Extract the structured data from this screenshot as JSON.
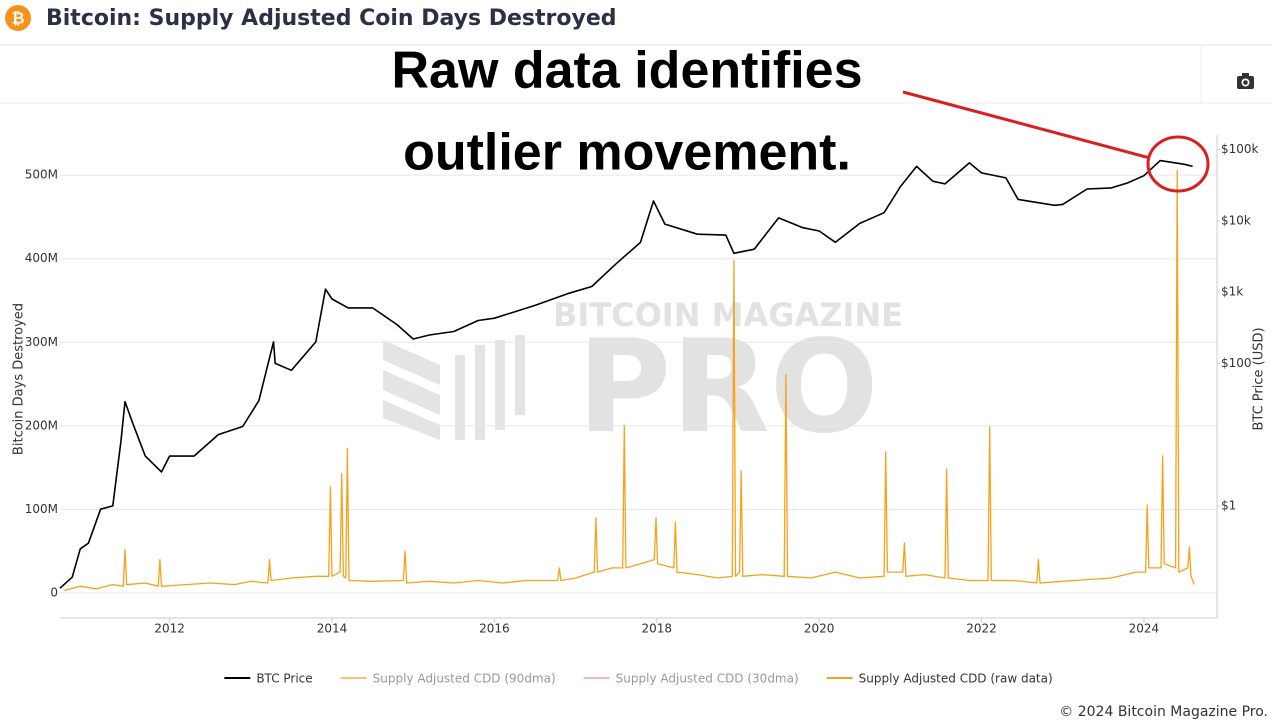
{
  "header": {
    "title": "Bitcoin: Supply Adjusted Coin Days Destroyed"
  },
  "annotation": [
    "Raw data identifies",
    "outlier movement."
  ],
  "watermark": [
    "BITCOIN MAGAZINE",
    "PRO"
  ],
  "footer": "© 2024 Bitcoin Magazine Pro.",
  "chart_data": {
    "type": "line",
    "ylabel": "Bitcoin Days Destroyed",
    "y2label": "BTC Price (USD)",
    "xlim": [
      2010.65,
      2024.9
    ],
    "xticks": [
      2012,
      2014,
      2016,
      2018,
      2020,
      2022,
      2024
    ],
    "ylim": [
      0,
      548000000
    ],
    "yticks": [
      0,
      {
        "value": 100000000,
        "label": "100M"
      },
      {
        "value": 200000000,
        "label": "200M"
      },
      {
        "value": 300000000,
        "label": "300M"
      },
      {
        "value": 400000000,
        "label": "400M"
      },
      {
        "value": 500000000,
        "label": "500M"
      }
    ],
    "y2lim": [
      0.06,
      160000
    ],
    "y2scale": "log",
    "y2ticks": [
      {
        "value": 1,
        "label": "$1"
      },
      {
        "value": 100,
        "label": "$100"
      },
      {
        "value": 1000,
        "label": "$1k"
      },
      {
        "value": 10000,
        "label": "$10k"
      },
      {
        "value": 100000,
        "label": "$100k"
      }
    ],
    "grid": true,
    "legend": "bottom",
    "series": [
      {
        "name": "BTC Price",
        "color": "#000000",
        "axis": "y2",
        "visible": true,
        "x": [
          2010.65,
          2010.8,
          2010.9,
          2011.0,
          2011.15,
          2011.3,
          2011.4,
          2011.45,
          2011.55,
          2011.7,
          2011.9,
          2012.0,
          2012.3,
          2012.6,
          2012.9,
          2013.1,
          2013.28,
          2013.3,
          2013.5,
          2013.8,
          2013.92,
          2014.0,
          2014.2,
          2014.5,
          2014.8,
          2015.0,
          2015.2,
          2015.5,
          2015.8,
          2016.0,
          2016.5,
          2016.9,
          2017.2,
          2017.5,
          2017.8,
          2017.96,
          2018.1,
          2018.5,
          2018.85,
          2018.95,
          2019.2,
          2019.5,
          2019.8,
          2020.0,
          2020.2,
          2020.5,
          2020.8,
          2021.0,
          2021.2,
          2021.4,
          2021.55,
          2021.85,
          2022.0,
          2022.3,
          2022.45,
          2022.9,
          2023.0,
          2023.3,
          2023.6,
          2023.8,
          2024.0,
          2024.2,
          2024.5,
          2024.6
        ],
        "values": [
          0.07,
          0.1,
          0.25,
          0.3,
          0.9,
          1,
          8,
          29,
          14,
          5,
          3,
          5,
          5,
          10,
          13,
          30,
          200,
          100,
          80,
          200,
          1100,
          800,
          600,
          600,
          350,
          220,
          250,
          280,
          400,
          430,
          650,
          950,
          1200,
          2500,
          5000,
          19000,
          9000,
          6500,
          6300,
          3500,
          4000,
          11000,
          8000,
          7200,
          5000,
          9200,
          13000,
          30000,
          58000,
          36000,
          33000,
          65000,
          47000,
          40000,
          20000,
          16500,
          17000,
          28000,
          29000,
          34000,
          43000,
          70000,
          62000,
          58000
        ]
      },
      {
        "name": "Supply Adjusted CDD (90dma)",
        "color": "#f9c26b",
        "axis": "y",
        "visible": false
      },
      {
        "name": "Supply Adjusted CDD (30dma)",
        "color": "#e6b3e6",
        "axis": "y",
        "visible": false
      },
      {
        "name": "Supply Adjusted CDD (raw data)",
        "color": "#f7a21b",
        "axis": "y",
        "visible": true,
        "x": [
          2010.7,
          2010.9,
          2011.1,
          2011.3,
          2011.43,
          2011.45,
          2011.47,
          2011.7,
          2011.86,
          2011.88,
          2011.9,
          2012.2,
          2012.5,
          2012.8,
          2013.0,
          2013.21,
          2013.23,
          2013.25,
          2013.5,
          2013.8,
          2013.96,
          2013.98,
          2014.0,
          2014.1,
          2014.12,
          2014.14,
          2014.17,
          2014.19,
          2014.21,
          2014.5,
          2014.88,
          2014.9,
          2014.92,
          2015.2,
          2015.5,
          2015.8,
          2016.1,
          2016.4,
          2016.78,
          2016.8,
          2016.82,
          2017.0,
          2017.23,
          2017.25,
          2017.27,
          2017.45,
          2017.58,
          2017.6,
          2017.62,
          2017.8,
          2017.97,
          2017.99,
          2018.01,
          2018.21,
          2018.23,
          2018.25,
          2018.5,
          2018.75,
          2018.93,
          2018.95,
          2018.97,
          2019.02,
          2019.04,
          2019.06,
          2019.3,
          2019.57,
          2019.59,
          2019.61,
          2019.9,
          2020.2,
          2020.5,
          2020.8,
          2020.82,
          2020.84,
          2021.03,
          2021.05,
          2021.07,
          2021.3,
          2021.55,
          2021.57,
          2021.59,
          2021.85,
          2022.08,
          2022.1,
          2022.12,
          2022.4,
          2022.68,
          2022.7,
          2022.72,
          2023.0,
          2023.3,
          2023.6,
          2023.9,
          2024.02,
          2024.04,
          2024.06,
          2024.21,
          2024.23,
          2024.25,
          2024.39,
          2024.41,
          2024.43,
          2024.54,
          2024.56,
          2024.58,
          2024.62
        ],
        "values": [
          3000000,
          8000000,
          5000000,
          10000000,
          8000000,
          52000000,
          10000000,
          12000000,
          8000000,
          40000000,
          8000000,
          10000000,
          12000000,
          10000000,
          14000000,
          12000000,
          40000000,
          15000000,
          18000000,
          20000000,
          20000000,
          127000000,
          20000000,
          25000000,
          143000000,
          20000000,
          18000000,
          173000000,
          15000000,
          14000000,
          15000000,
          50000000,
          12000000,
          14000000,
          12000000,
          15000000,
          12000000,
          15000000,
          15000000,
          30000000,
          15000000,
          18000000,
          25000000,
          90000000,
          25000000,
          30000000,
          30000000,
          200000000,
          30000000,
          35000000,
          40000000,
          90000000,
          35000000,
          30000000,
          85000000,
          25000000,
          22000000,
          18000000,
          20000000,
          398000000,
          20000000,
          25000000,
          146000000,
          20000000,
          22000000,
          20000000,
          261000000,
          20000000,
          18000000,
          25000000,
          18000000,
          20000000,
          169000000,
          25000000,
          25000000,
          60000000,
          20000000,
          22000000,
          18000000,
          148000000,
          18000000,
          15000000,
          15000000,
          199000000,
          15000000,
          15000000,
          12000000,
          40000000,
          12000000,
          14000000,
          16000000,
          18000000,
          25000000,
          25000000,
          105000000,
          30000000,
          30000000,
          164000000,
          35000000,
          30000000,
          506000000,
          25000000,
          30000000,
          55000000,
          20000000,
          10000000
        ]
      }
    ]
  }
}
